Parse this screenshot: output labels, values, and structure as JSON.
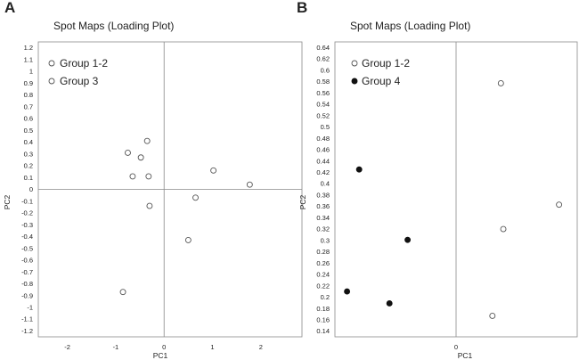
{
  "chart_data": [
    {
      "panel": "A",
      "type": "scatter",
      "title": "Spot Maps (Loading Plot)",
      "xlabel": "PC1",
      "ylabel": "PC2",
      "xlim": [
        -2.6,
        2.85
      ],
      "ylim": [
        -1.25,
        1.25
      ],
      "xticks": [
        "-2",
        "-1",
        "0",
        "1",
        "2"
      ],
      "yticks": [
        "1.2",
        "1.1",
        "1",
        "0.9",
        "0.8",
        "0.7",
        "0.6",
        "0.5",
        "0.4",
        "0.3",
        "0.2",
        "0.1",
        "0",
        "-0.1",
        "-0.2",
        "-0.3",
        "-0.4",
        "-0.5",
        "-0.6",
        "-0.7",
        "-0.8",
        "-0.9",
        "-1",
        "-1.1",
        "-1.2"
      ],
      "zero_lines": {
        "x": 0,
        "y": 0
      },
      "legend": "top-left",
      "series": [
        {
          "name": "Group 1-2",
          "marker": "open-circle",
          "points": [
            [
              -0.35,
              0.41
            ],
            [
              -0.75,
              0.31
            ],
            [
              -0.48,
              0.27
            ],
            [
              -0.65,
              0.11
            ],
            [
              -0.32,
              0.11
            ],
            [
              1.02,
              0.16
            ],
            [
              1.77,
              0.04
            ],
            [
              0.65,
              -0.07
            ],
            [
              -0.3,
              -0.14
            ],
            [
              0.5,
              -0.43
            ],
            [
              -0.85,
              -0.87
            ]
          ]
        },
        {
          "name": "Group 3",
          "marker": "open-circle",
          "points": []
        }
      ]
    },
    {
      "panel": "B",
      "type": "scatter",
      "title": "Spot Maps (Loading Plot)",
      "xlabel": "PC1",
      "ylabel": "PC2",
      "xlim": [
        -1,
        1
      ],
      "ylim": [
        0.13,
        0.65
      ],
      "xticks": [
        "0"
      ],
      "yticks": [
        "0.64",
        "0.62",
        "0.6",
        "0.58",
        "0.56",
        "0.54",
        "0.52",
        "0.5",
        "0.48",
        "0.46",
        "0.44",
        "0.42",
        "0.4",
        "0.38",
        "0.36",
        "0.34",
        "0.32",
        "0.3",
        "0.28",
        "0.26",
        "0.24",
        "0.22",
        "0.2",
        "0.18",
        "0.16",
        "0.14"
      ],
      "zero_lines": {
        "x": 0
      },
      "legend": "top-left",
      "series": [
        {
          "name": "Group 1-2",
          "marker": "open-circle",
          "points": [
            [
              0.37,
              0.577
            ],
            [
              0.85,
              0.363
            ],
            [
              0.39,
              0.32
            ],
            [
              0.3,
              0.167
            ]
          ]
        },
        {
          "name": "Group 4",
          "marker": "filled-circle",
          "points": [
            [
              -0.8,
              0.425
            ],
            [
              -0.4,
              0.301
            ],
            [
              -0.55,
              0.189
            ],
            [
              -0.9,
              0.21
            ]
          ]
        }
      ]
    }
  ]
}
